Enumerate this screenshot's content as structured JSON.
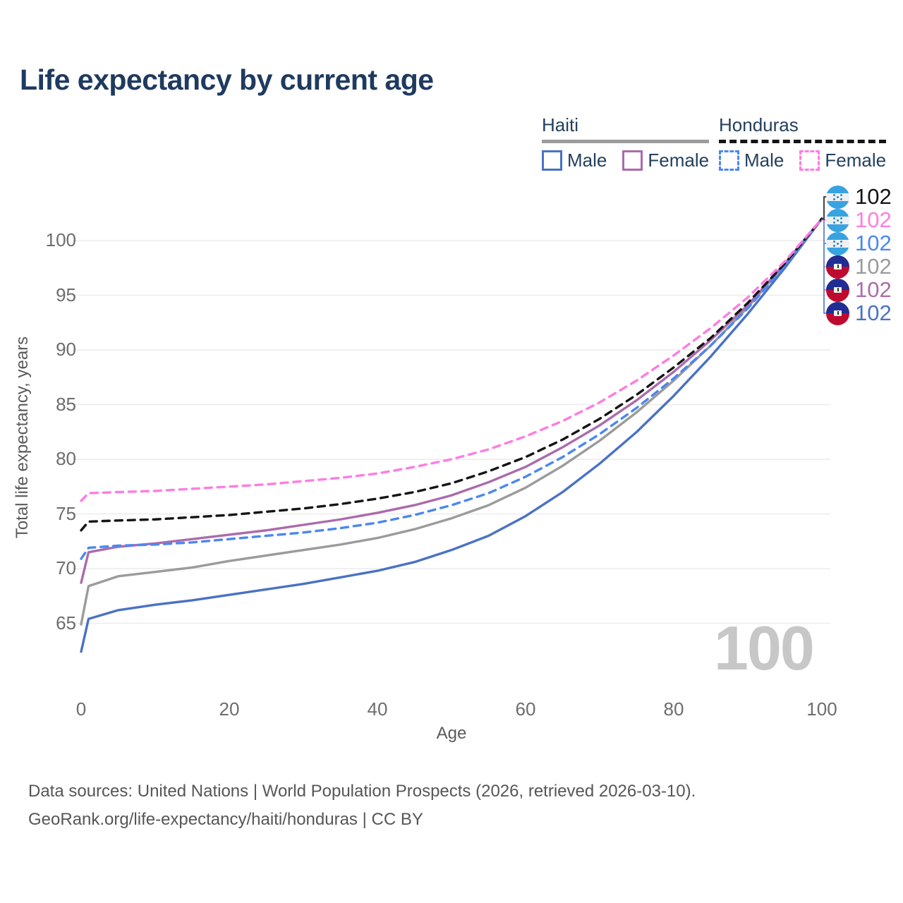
{
  "title": "Life expectancy by current age",
  "legend": {
    "groups": [
      {
        "label": "Haiti",
        "line_style": "solid",
        "line_color": "#9b9b9b",
        "items": [
          {
            "label": "Male",
            "color": "#4a72c4",
            "style": "solid"
          },
          {
            "label": "Female",
            "color": "#ab6bab",
            "style": "solid"
          }
        ]
      },
      {
        "label": "Honduras",
        "line_style": "dashed",
        "line_color": "#141414",
        "items": [
          {
            "label": "Male",
            "color": "#4b87f0",
            "style": "dashed"
          },
          {
            "label": "Female",
            "color": "#ff7ce0",
            "style": "dashed"
          }
        ]
      }
    ]
  },
  "watermark": "100",
  "end_labels": [
    {
      "country": "Honduras",
      "series": "Total",
      "value": "102",
      "color": "#141414"
    },
    {
      "country": "Honduras",
      "series": "Female",
      "value": "102",
      "color": "#ff7ce0"
    },
    {
      "country": "Honduras",
      "series": "Male",
      "value": "102",
      "color": "#4b87f0"
    },
    {
      "country": "Haiti",
      "series": "Total",
      "value": "102",
      "color": "#9b9b9b"
    },
    {
      "country": "Haiti",
      "series": "Female",
      "value": "102",
      "color": "#ab6bab"
    },
    {
      "country": "Haiti",
      "series": "Male",
      "value": "102",
      "color": "#4a72c4"
    }
  ],
  "chart_data": {
    "type": "line",
    "title": "Life expectancy by current age",
    "xlabel": "Age",
    "ylabel": "Total life expectancy, years",
    "xlim": [
      0,
      100
    ],
    "ylim": [
      60,
      104.5
    ],
    "x_ticks": [
      0,
      20,
      40,
      60,
      80,
      100
    ],
    "y_ticks": [
      65,
      70,
      75,
      80,
      85,
      90,
      95,
      100
    ],
    "grid": true,
    "legend_position": "top-right",
    "x": [
      0,
      1,
      5,
      10,
      15,
      20,
      25,
      30,
      35,
      40,
      45,
      50,
      55,
      60,
      65,
      70,
      75,
      80,
      85,
      90,
      95,
      100
    ],
    "series": [
      {
        "id": "haiti_total",
        "name": "Haiti Total",
        "color": "#9b9b9b",
        "dash": false,
        "values": [
          64.9,
          68.4,
          69.3,
          69.7,
          70.1,
          70.7,
          71.2,
          71.7,
          72.2,
          72.8,
          73.6,
          74.6,
          75.8,
          77.4,
          79.4,
          81.7,
          84.3,
          87.2,
          90.4,
          93.9,
          97.8,
          102
        ]
      },
      {
        "id": "haiti_male",
        "name": "Haiti Male",
        "color": "#4a72c4",
        "dash": false,
        "values": [
          62.4,
          65.4,
          66.2,
          66.7,
          67.1,
          67.6,
          68.1,
          68.6,
          69.2,
          69.8,
          70.6,
          71.7,
          73.0,
          74.8,
          77.0,
          79.6,
          82.5,
          85.8,
          89.4,
          93.3,
          97.5,
          102
        ]
      },
      {
        "id": "haiti_female",
        "name": "Haiti Female",
        "color": "#ab6bab",
        "dash": false,
        "values": [
          68.7,
          71.5,
          72.0,
          72.3,
          72.7,
          73.1,
          73.5,
          74.0,
          74.5,
          75.1,
          75.8,
          76.7,
          77.9,
          79.3,
          81.1,
          83.1,
          85.4,
          88.0,
          90.9,
          94.1,
          97.9,
          102
        ]
      },
      {
        "id": "honduras_male",
        "name": "Honduras Male",
        "color": "#4b87f0",
        "dash": true,
        "values": [
          70.9,
          71.9,
          72.1,
          72.2,
          72.4,
          72.7,
          73.0,
          73.3,
          73.7,
          74.2,
          74.9,
          75.8,
          76.9,
          78.4,
          80.2,
          82.3,
          84.7,
          87.4,
          90.4,
          93.8,
          97.7,
          102
        ]
      },
      {
        "id": "honduras_total",
        "name": "Honduras Total",
        "color": "#141414",
        "dash": true,
        "values": [
          73.5,
          74.3,
          74.4,
          74.5,
          74.7,
          74.9,
          75.2,
          75.5,
          75.9,
          76.4,
          77.0,
          77.8,
          78.9,
          80.2,
          81.8,
          83.7,
          85.9,
          88.4,
          91.1,
          94.3,
          97.9,
          102
        ]
      },
      {
        "id": "honduras_female",
        "name": "Honduras Female",
        "color": "#ff7ce0",
        "dash": true,
        "values": [
          76.2,
          76.9,
          77.0,
          77.1,
          77.3,
          77.5,
          77.7,
          78.0,
          78.3,
          78.7,
          79.3,
          80.0,
          80.9,
          82.1,
          83.5,
          85.2,
          87.2,
          89.5,
          92.0,
          94.8,
          98.1,
          102
        ]
      }
    ]
  },
  "footer": {
    "line1": "Data sources: United Nations | World Population Prospects (2026, retrieved 2026-03-10).",
    "line2": "GeoRank.org/life-expectancy/haiti/honduras | CC BY"
  }
}
